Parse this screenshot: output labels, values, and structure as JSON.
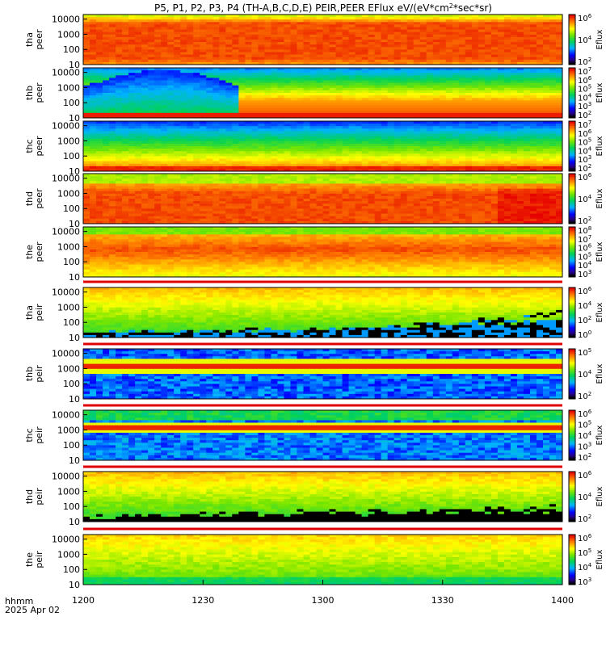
{
  "title": "P5, P1, P2, P3, P4 (TH-A,B,C,D,E) PEIR,PEER EFlux eV/(eV*cm^2*sec*sr)",
  "time_axis_label": "hhmm",
  "date_label": "2025 Apr 02",
  "colorbar_label": "Eflux",
  "x_ticks": [
    "1200",
    "1230",
    "1300",
    "1330",
    "1400"
  ],
  "y_ticks": [
    "10000",
    "1000",
    "100",
    "10"
  ],
  "colors": {
    "high": "#ff0000",
    "mid": "#ffff00",
    "low": "#00cc44",
    "very_low": "#0000ff",
    "fill": "#000000"
  },
  "chart_data": {
    "type": "heatmap",
    "x_unit": "hhmm",
    "x_range": [
      "1200",
      "1400"
    ],
    "y_scale": "log",
    "y_unit": "eV",
    "y_range": [
      10,
      20000
    ],
    "panels": [
      {
        "label": "tha peer",
        "colorbar_ticks": [
          "10^6",
          "10^4",
          "10^2"
        ],
        "profile": "elec_a"
      },
      {
        "label": "thb peer",
        "colorbar_ticks": [
          "10^7",
          "10^6",
          "10^5",
          "10^4",
          "10^3",
          "10^2"
        ],
        "profile": "elec_b"
      },
      {
        "label": "thc peer",
        "colorbar_ticks": [
          "10^7",
          "10^6",
          "10^5",
          "10^4",
          "10^3",
          "10^2"
        ],
        "profile": "elec_c"
      },
      {
        "label": "thd peer",
        "colorbar_ticks": [
          "10^6",
          "10^4",
          "10^2"
        ],
        "profile": "elec_d"
      },
      {
        "label": "the peer",
        "colorbar_ticks": [
          "10^8",
          "10^7",
          "10^6",
          "10^5",
          "10^4",
          "10^3"
        ],
        "profile": "elec_e"
      },
      {
        "label": "tha peir",
        "colorbar_ticks": [
          "10^6",
          "10^4",
          "10^2",
          "10^0"
        ],
        "profile": "ion_a"
      },
      {
        "label": "thb peir",
        "colorbar_ticks": [
          "10^5",
          "10^4",
          "10^2"
        ],
        "profile": "ion_b"
      },
      {
        "label": "thc peir",
        "colorbar_ticks": [
          "10^6",
          "10^5",
          "10^4",
          "10^3",
          "10^2"
        ],
        "profile": "ion_c"
      },
      {
        "label": "thd peir",
        "colorbar_ticks": [
          "10^6",
          "10^4",
          "10^2"
        ],
        "profile": "ion_d"
      },
      {
        "label": "the peir",
        "colorbar_ticks": [
          "10^6",
          "10^5",
          "10^4",
          "10^3"
        ],
        "profile": "ion_e"
      }
    ]
  }
}
